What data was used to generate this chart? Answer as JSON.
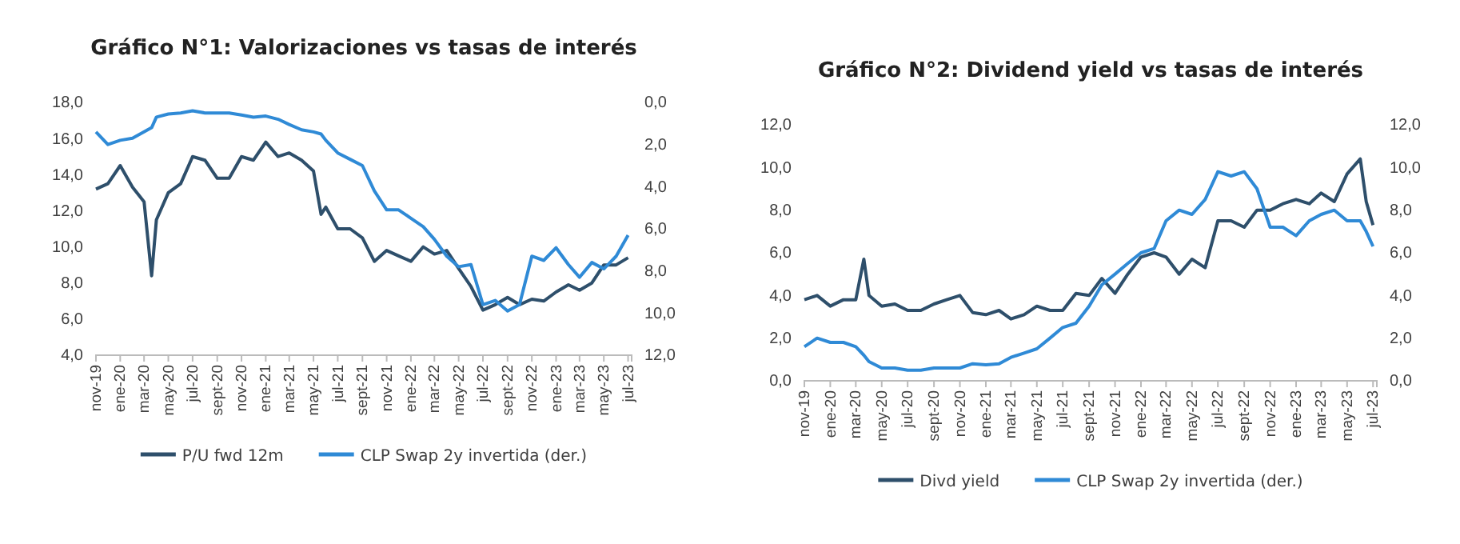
{
  "chart_data": [
    {
      "type": "line",
      "title": "Gráfico N°1: Valorizaciones vs tasas de interés",
      "legend": "bottom",
      "x": [
        "2019-11-01",
        "2019-12-01",
        "2020-01-01",
        "2020-02-01",
        "2020-03-01",
        "2020-03-20",
        "2020-04-01",
        "2020-05-01",
        "2020-06-01",
        "2020-07-01",
        "2020-08-01",
        "2020-09-01",
        "2020-10-01",
        "2020-11-01",
        "2020-12-01",
        "2021-01-01",
        "2021-02-01",
        "2021-03-01",
        "2021-04-01",
        "2021-05-01",
        "2021-05-20",
        "2021-06-01",
        "2021-07-01",
        "2021-08-01",
        "2021-09-01",
        "2021-10-01",
        "2021-11-01",
        "2021-12-01",
        "2022-01-01",
        "2022-02-01",
        "2022-03-01",
        "2022-04-01",
        "2022-05-01",
        "2022-06-01",
        "2022-07-01",
        "2022-08-01",
        "2022-09-01",
        "2022-10-01",
        "2022-11-01",
        "2022-12-01",
        "2023-01-01",
        "2023-02-01",
        "2023-03-01",
        "2023-04-01",
        "2023-05-01",
        "2023-06-01",
        "2023-07-01"
      ],
      "series": [
        {
          "name": "P/U fwd 12m",
          "color": "#2e4f6b",
          "values": [
            13.2,
            13.5,
            14.5,
            13.3,
            12.5,
            8.4,
            11.5,
            13.0,
            13.5,
            15.0,
            14.8,
            13.8,
            13.8,
            15.0,
            14.8,
            15.8,
            15.0,
            15.2,
            14.8,
            14.2,
            11.8,
            12.2,
            11.0,
            11.0,
            10.5,
            9.2,
            9.8,
            9.5,
            9.2,
            10.0,
            9.6,
            9.8,
            8.8,
            7.8,
            6.5,
            6.8,
            7.2,
            6.8,
            7.1,
            7.0,
            7.5,
            7.9,
            7.6,
            8.0,
            9.0,
            9.0,
            9.4
          ]
        },
        {
          "name": "CLP Swap 2y invertida (der.)",
          "color": "#2f8ad6",
          "axis": "y2",
          "values": [
            1.4,
            2.0,
            1.8,
            1.7,
            1.4,
            1.2,
            0.7,
            0.55,
            0.5,
            0.4,
            0.5,
            0.5,
            0.5,
            0.6,
            0.7,
            0.65,
            0.8,
            1.05,
            1.3,
            1.4,
            1.5,
            1.8,
            2.4,
            2.7,
            3.0,
            4.2,
            5.1,
            5.1,
            5.5,
            5.9,
            6.5,
            7.3,
            7.8,
            7.7,
            9.6,
            9.4,
            9.9,
            9.6,
            7.3,
            7.5,
            6.9,
            7.7,
            8.3,
            7.6,
            7.9,
            7.3,
            6.3
          ]
        }
      ],
      "xlim": [
        "2019-11-01",
        "2023-07-10"
      ],
      "xticks": [
        {
          "value": "2019-11-01",
          "label": "nov-19"
        },
        {
          "value": "2020-01-01",
          "label": "ene-20"
        },
        {
          "value": "2020-03-01",
          "label": "mar-20"
        },
        {
          "value": "2020-05-01",
          "label": "may-20"
        },
        {
          "value": "2020-07-01",
          "label": "jul-20"
        },
        {
          "value": "2020-09-01",
          "label": "sept-20"
        },
        {
          "value": "2020-11-01",
          "label": "nov-20"
        },
        {
          "value": "2021-01-01",
          "label": "ene-21"
        },
        {
          "value": "2021-03-01",
          "label": "mar-21"
        },
        {
          "value": "2021-05-01",
          "label": "may-21"
        },
        {
          "value": "2021-07-01",
          "label": "jul-21"
        },
        {
          "value": "2021-09-01",
          "label": "sept-21"
        },
        {
          "value": "2021-11-01",
          "label": "nov-21"
        },
        {
          "value": "2022-01-01",
          "label": "ene-22"
        },
        {
          "value": "2022-03-01",
          "label": "mar-22"
        },
        {
          "value": "2022-05-01",
          "label": "may-22"
        },
        {
          "value": "2022-07-01",
          "label": "jul-22"
        },
        {
          "value": "2022-09-01",
          "label": "sept-22"
        },
        {
          "value": "2022-11-01",
          "label": "nov-22"
        },
        {
          "value": "2023-01-01",
          "label": "ene-23"
        },
        {
          "value": "2023-03-01",
          "label": "mar-23"
        },
        {
          "value": "2023-05-01",
          "label": "may-23"
        },
        {
          "value": "2023-07-01",
          "label": "jul-23"
        }
      ],
      "ylim": [
        4,
        18
      ],
      "yticks": [
        {
          "value": 4,
          "label": "4,0"
        },
        {
          "value": 6,
          "label": "6,0"
        },
        {
          "value": 8,
          "label": "8,0"
        },
        {
          "value": 10,
          "label": "10,0"
        },
        {
          "value": 12,
          "label": "12,0"
        },
        {
          "value": 14,
          "label": "14,0"
        },
        {
          "value": 16,
          "label": "16,0"
        },
        {
          "value": 18,
          "label": "18,0"
        }
      ],
      "y2lim": [
        12,
        0
      ],
      "y2ticks": [
        {
          "value": 0,
          "label": "0,0"
        },
        {
          "value": 2,
          "label": "2,0"
        },
        {
          "value": 4,
          "label": "4,0"
        },
        {
          "value": 6,
          "label": "6,0"
        },
        {
          "value": 8,
          "label": "8,0"
        },
        {
          "value": 10,
          "label": "10,0"
        },
        {
          "value": 12,
          "label": "12,0"
        }
      ]
    },
    {
      "type": "line",
      "title": "Gráfico N°2: Dividend yield vs tasas de interés",
      "legend": "bottom",
      "x": [
        "2019-11-01",
        "2019-12-01",
        "2020-01-01",
        "2020-02-01",
        "2020-03-01",
        "2020-03-20",
        "2020-04-01",
        "2020-05-01",
        "2020-06-01",
        "2020-07-01",
        "2020-08-01",
        "2020-09-01",
        "2020-10-01",
        "2020-11-01",
        "2020-12-01",
        "2021-01-01",
        "2021-02-01",
        "2021-03-01",
        "2021-04-01",
        "2021-05-01",
        "2021-06-01",
        "2021-07-01",
        "2021-08-01",
        "2021-09-01",
        "2021-10-01",
        "2021-11-01",
        "2021-12-01",
        "2022-01-01",
        "2022-02-01",
        "2022-03-01",
        "2022-04-01",
        "2022-05-01",
        "2022-06-01",
        "2022-07-01",
        "2022-08-01",
        "2022-09-01",
        "2022-10-01",
        "2022-11-01",
        "2022-12-01",
        "2023-01-01",
        "2023-02-01",
        "2023-03-01",
        "2023-04-01",
        "2023-05-01",
        "2023-06-01",
        "2023-06-15",
        "2023-07-01"
      ],
      "series": [
        {
          "name": "Divd yield",
          "color": "#2e4f6b",
          "values": [
            3.8,
            4.0,
            3.5,
            3.8,
            3.8,
            5.7,
            4.0,
            3.5,
            3.6,
            3.3,
            3.3,
            3.6,
            3.8,
            4.0,
            3.2,
            3.1,
            3.3,
            2.9,
            3.1,
            3.5,
            3.3,
            3.3,
            4.1,
            4.0,
            4.8,
            4.1,
            5.0,
            5.8,
            6.0,
            5.8,
            5.0,
            5.7,
            5.3,
            7.5,
            7.5,
            7.2,
            8.0,
            8.0,
            8.3,
            8.5,
            8.3,
            8.8,
            8.4,
            9.7,
            10.4,
            8.4,
            7.3
          ]
        },
        {
          "name": "CLP Swap 2y invertida (der.)",
          "color": "#2f8ad6",
          "axis": "y2",
          "values": [
            1.6,
            2.0,
            1.8,
            1.8,
            1.6,
            1.2,
            0.9,
            0.6,
            0.6,
            0.5,
            0.5,
            0.6,
            0.6,
            0.6,
            0.8,
            0.75,
            0.8,
            1.1,
            1.3,
            1.5,
            2.0,
            2.5,
            2.7,
            3.5,
            4.5,
            5.0,
            5.5,
            6.0,
            6.2,
            7.5,
            8.0,
            7.8,
            8.5,
            9.8,
            9.6,
            9.8,
            9.0,
            7.2,
            7.2,
            6.8,
            7.5,
            7.8,
            8.0,
            7.5,
            7.5,
            7.0,
            6.3
          ]
        }
      ],
      "xlim": [
        "2019-11-01",
        "2023-07-10"
      ],
      "xticks": [
        {
          "value": "2019-11-01",
          "label": "nov-19"
        },
        {
          "value": "2020-01-01",
          "label": "ene-20"
        },
        {
          "value": "2020-03-01",
          "label": "mar-20"
        },
        {
          "value": "2020-05-01",
          "label": "may-20"
        },
        {
          "value": "2020-07-01",
          "label": "jul-20"
        },
        {
          "value": "2020-09-01",
          "label": "sept-20"
        },
        {
          "value": "2020-11-01",
          "label": "nov-20"
        },
        {
          "value": "2021-01-01",
          "label": "ene-21"
        },
        {
          "value": "2021-03-01",
          "label": "mar-21"
        },
        {
          "value": "2021-05-01",
          "label": "may-21"
        },
        {
          "value": "2021-07-01",
          "label": "jul-21"
        },
        {
          "value": "2021-09-01",
          "label": "sept-21"
        },
        {
          "value": "2021-11-01",
          "label": "nov-21"
        },
        {
          "value": "2022-01-01",
          "label": "ene-22"
        },
        {
          "value": "2022-03-01",
          "label": "mar-22"
        },
        {
          "value": "2022-05-01",
          "label": "may-22"
        },
        {
          "value": "2022-07-01",
          "label": "jul-22"
        },
        {
          "value": "2022-09-01",
          "label": "sept-22"
        },
        {
          "value": "2022-11-01",
          "label": "nov-22"
        },
        {
          "value": "2023-01-01",
          "label": "ene-23"
        },
        {
          "value": "2023-03-01",
          "label": "mar-23"
        },
        {
          "value": "2023-05-01",
          "label": "may-23"
        },
        {
          "value": "2023-07-01",
          "label": "jul-23"
        }
      ],
      "ylim": [
        0,
        12
      ],
      "yticks": [
        {
          "value": 0,
          "label": "0,0"
        },
        {
          "value": 2,
          "label": "2,0"
        },
        {
          "value": 4,
          "label": "4,0"
        },
        {
          "value": 6,
          "label": "6,0"
        },
        {
          "value": 8,
          "label": "8,0"
        },
        {
          "value": 10,
          "label": "10,0"
        },
        {
          "value": 12,
          "label": "12,0"
        }
      ],
      "y2lim": [
        0,
        12
      ],
      "y2ticks": [
        {
          "value": 0,
          "label": "0,0"
        },
        {
          "value": 2,
          "label": "2,0"
        },
        {
          "value": 4,
          "label": "4,0"
        },
        {
          "value": 6,
          "label": "6,0"
        },
        {
          "value": 8,
          "label": "8,0"
        },
        {
          "value": 10,
          "label": "10,0"
        },
        {
          "value": 12,
          "label": "12,0"
        }
      ]
    }
  ]
}
